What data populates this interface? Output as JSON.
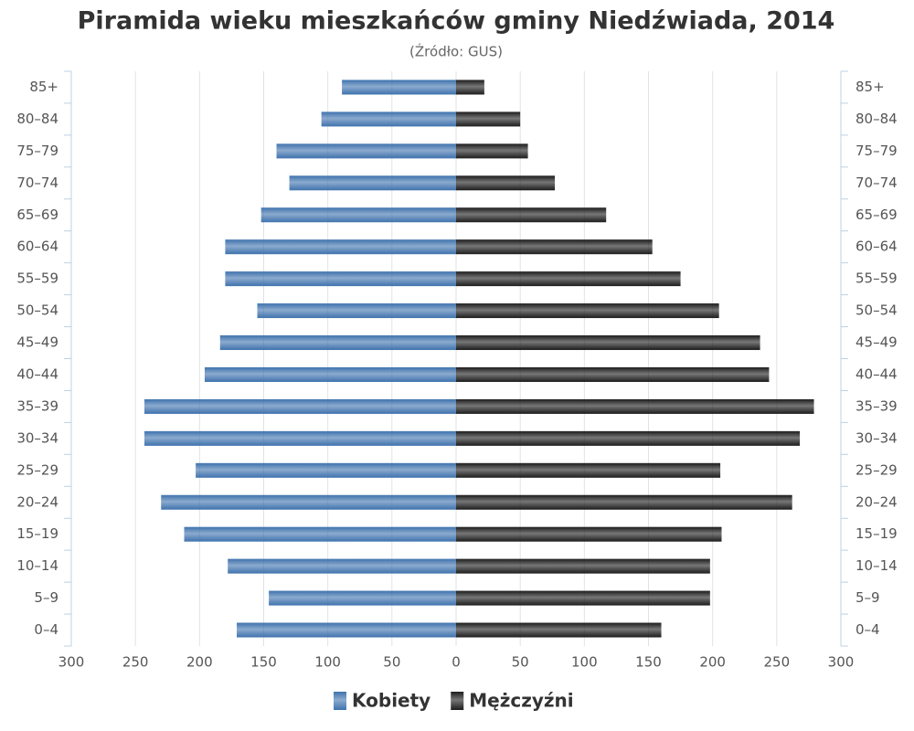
{
  "chart_data": {
    "type": "pyramid",
    "title": "Piramida wieku mieszkańców gminy Niedźwiada, 2014",
    "subtitle": "(Źródło: GUS)",
    "categories": [
      "85+",
      "80–84",
      "75–79",
      "70–74",
      "65–69",
      "60–64",
      "55–59",
      "50–54",
      "45–49",
      "40–44",
      "35–39",
      "30–34",
      "25–29",
      "20–24",
      "15–19",
      "10–14",
      "5–9",
      "0–4"
    ],
    "series": [
      {
        "name": "Kobiety",
        "color": "#3f72ad",
        "values": [
          -89,
          -105,
          -140,
          -130,
          -152,
          -180,
          -180,
          -155,
          -184,
          -196,
          -243,
          -243,
          -203,
          -230,
          -212,
          -178,
          -146,
          -171
        ]
      },
      {
        "name": "Mężczyźni",
        "color": "#1c1c1c",
        "values": [
          22,
          50,
          56,
          77,
          117,
          153,
          175,
          205,
          237,
          244,
          279,
          268,
          206,
          262,
          207,
          198,
          198,
          160
        ]
      }
    ],
    "xlim": [
      -300,
      300
    ],
    "xticks": [
      {
        "value": -300,
        "label": "300"
      },
      {
        "value": -250,
        "label": "250"
      },
      {
        "value": -200,
        "label": "200"
      },
      {
        "value": -150,
        "label": "150"
      },
      {
        "value": -100,
        "label": "100"
      },
      {
        "value": -50,
        "label": "50"
      },
      0,
      50,
      100,
      150,
      200,
      250,
      300
    ],
    "grid": true
  }
}
